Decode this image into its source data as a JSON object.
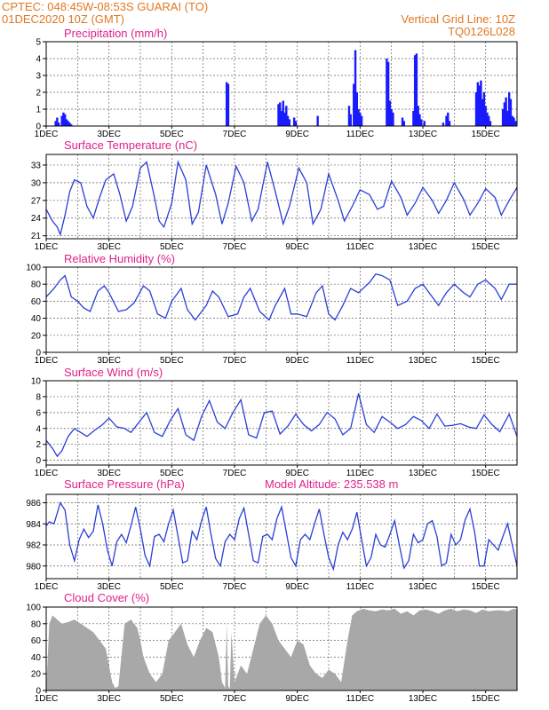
{
  "header": {
    "line1_left": "CPTEC:   048:45W-08:53S   GUARAI (TO)",
    "line2_left": "01DEC2020 10Z (GMT)",
    "line1_right": "Vertical Grid Line: 10Z",
    "line2_right": "TQ0126L028"
  },
  "chart_data": [
    {
      "id": "precip",
      "type": "bar",
      "title": "Precipitation (mm/h)",
      "ylim": [
        0,
        5
      ],
      "yticks": [
        "0",
        "1",
        "2",
        "3",
        "4",
        "5"
      ],
      "xticks": [
        "1DEC",
        "3DEC",
        "5DEC",
        "7DEC",
        "9DEC",
        "11DEC",
        "13DEC",
        "15DEC"
      ],
      "grid": true,
      "bars": [
        [
          0.3,
          0.3
        ],
        [
          0.35,
          0.5
        ],
        [
          0.4,
          0.2
        ],
        [
          0.5,
          0.6
        ],
        [
          0.55,
          0.8
        ],
        [
          0.6,
          0.7
        ],
        [
          0.65,
          0.4
        ],
        [
          0.7,
          0.3
        ],
        [
          0.75,
          0.2
        ],
        [
          0.8,
          0.1
        ],
        [
          5.75,
          2.6
        ],
        [
          5.8,
          2.5
        ],
        [
          7.4,
          1.3
        ],
        [
          7.45,
          1.4
        ],
        [
          7.5,
          0.9
        ],
        [
          7.55,
          1.5
        ],
        [
          7.6,
          0.8
        ],
        [
          7.65,
          1.2
        ],
        [
          7.7,
          0.6
        ],
        [
          7.75,
          0.4
        ],
        [
          7.9,
          0.5
        ],
        [
          7.95,
          0.3
        ],
        [
          8.65,
          0.6
        ],
        [
          9.65,
          1.2
        ],
        [
          9.7,
          0.7
        ],
        [
          9.8,
          2.5
        ],
        [
          9.85,
          4.5
        ],
        [
          9.9,
          2.0
        ],
        [
          9.95,
          1.0
        ],
        [
          10.0,
          0.8
        ],
        [
          10.05,
          0.6
        ],
        [
          10.85,
          4.0
        ],
        [
          10.9,
          3.8
        ],
        [
          10.95,
          1.5
        ],
        [
          11.0,
          1.0
        ],
        [
          11.05,
          0.8
        ],
        [
          11.35,
          0.5
        ],
        [
          11.4,
          0.3
        ],
        [
          11.7,
          0.9
        ],
        [
          11.75,
          4.2
        ],
        [
          11.8,
          4.3
        ],
        [
          11.85,
          1.2
        ],
        [
          11.9,
          0.7
        ],
        [
          11.95,
          0.4
        ],
        [
          12.05,
          0.3
        ],
        [
          12.65,
          0.2
        ],
        [
          12.75,
          0.6
        ],
        [
          12.8,
          0.8
        ],
        [
          12.85,
          0.3
        ],
        [
          13.7,
          2.0
        ],
        [
          13.75,
          2.6
        ],
        [
          13.8,
          2.4
        ],
        [
          13.85,
          2.7
        ],
        [
          13.9,
          1.6
        ],
        [
          13.95,
          2.0
        ],
        [
          14.0,
          1.2
        ],
        [
          14.05,
          0.8
        ],
        [
          14.1,
          0.6
        ],
        [
          14.15,
          0.3
        ],
        [
          14.55,
          1.0
        ],
        [
          14.6,
          1.4
        ],
        [
          14.65,
          1.7
        ],
        [
          14.7,
          0.9
        ],
        [
          14.75,
          2.0
        ],
        [
          14.8,
          1.6
        ],
        [
          14.85,
          0.6
        ],
        [
          14.9,
          0.5
        ],
        [
          14.95,
          0.3
        ]
      ]
    },
    {
      "id": "temp",
      "type": "line",
      "title": "Surface Temperature (nC)",
      "ylim": [
        20.5,
        34.8
      ],
      "yticks": [
        "21",
        "24",
        "27",
        "30",
        "33"
      ],
      "xticks": [
        "1DEC",
        "3DEC",
        "5DEC",
        "7DEC",
        "9DEC",
        "11DEC",
        "13DEC",
        "15DEC"
      ],
      "grid": true,
      "x": [
        0,
        0.2,
        0.35,
        0.45,
        0.6,
        0.75,
        0.9,
        1.1,
        1.3,
        1.5,
        1.7,
        1.9,
        2.15,
        2.35,
        2.55,
        2.75,
        3.0,
        3.2,
        3.45,
        3.6,
        3.75,
        4.0,
        4.2,
        4.45,
        4.65,
        4.85,
        5.1,
        5.4,
        5.6,
        5.8,
        6.05,
        6.3,
        6.55,
        6.75,
        7.05,
        7.3,
        7.55,
        7.75,
        8.05,
        8.3,
        8.5,
        8.75,
        9.0,
        9.3,
        9.5,
        9.75,
        10.0,
        10.3,
        10.55,
        10.75,
        11.0,
        11.3,
        11.5,
        11.75,
        12.0,
        12.3,
        12.5,
        12.75,
        13.0,
        13.3,
        13.5,
        13.75,
        14.0,
        14.3,
        14.5,
        14.75,
        15.0
      ],
      "y": [
        25.5,
        23.5,
        22.5,
        21.2,
        24.5,
        28.5,
        30.5,
        30.0,
        26.0,
        24.0,
        27.5,
        30.5,
        31.5,
        28.0,
        23.5,
        26.0,
        32.5,
        33.5,
        27.5,
        23.5,
        22.5,
        26.5,
        33.5,
        30.5,
        23.0,
        25.0,
        33.0,
        28.0,
        23.0,
        26.5,
        32.8,
        30.0,
        23.5,
        25.5,
        33.5,
        28.5,
        23.0,
        26.0,
        32.5,
        30.0,
        23.0,
        25.5,
        31.5,
        27.0,
        23.5,
        26.0,
        28.8,
        28.0,
        25.5,
        26.0,
        30.3,
        27.5,
        24.5,
        26.5,
        29.2,
        27.0,
        24.8,
        27.0,
        30.0,
        27.2,
        24.5,
        26.5,
        29.0,
        27.5,
        24.5,
        27.0,
        29.2
      ]
    },
    {
      "id": "rh",
      "type": "line",
      "title": "Relative Humidity (%)",
      "ylim": [
        0,
        100
      ],
      "yticks": [
        "0",
        "20",
        "40",
        "60",
        "80",
        "100"
      ],
      "xticks": [
        "1DEC",
        "3DEC",
        "5DEC",
        "7DEC",
        "9DEC",
        "11DEC",
        "13DEC",
        "15DEC"
      ],
      "grid": true,
      "x": [
        0,
        0.25,
        0.45,
        0.6,
        0.8,
        1.0,
        1.2,
        1.4,
        1.65,
        1.85,
        2.0,
        2.3,
        2.55,
        2.8,
        3.1,
        3.3,
        3.55,
        3.8,
        4.0,
        4.3,
        4.5,
        4.75,
        5.1,
        5.3,
        5.5,
        5.8,
        6.1,
        6.3,
        6.5,
        6.8,
        7.1,
        7.3,
        7.6,
        7.8,
        8.0,
        8.3,
        8.6,
        8.8,
        9.0,
        9.2,
        9.45,
        9.7,
        9.95,
        10.3,
        10.5,
        10.7,
        10.95,
        11.2,
        11.5,
        11.75,
        12.0,
        12.3,
        12.5,
        12.75,
        13.0,
        13.3,
        13.5,
        13.75,
        14.0,
        14.3,
        14.5,
        14.75,
        15.0
      ],
      "y": [
        65,
        75,
        85,
        90,
        65,
        60,
        52,
        48,
        72,
        78,
        70,
        48,
        50,
        58,
        78,
        72,
        45,
        40,
        60,
        75,
        50,
        38,
        55,
        72,
        65,
        42,
        45,
        65,
        75,
        48,
        38,
        55,
        75,
        45,
        45,
        42,
        70,
        78,
        45,
        38,
        55,
        75,
        70,
        82,
        92,
        90,
        85,
        55,
        60,
        75,
        80,
        65,
        55,
        70,
        80,
        70,
        65,
        80,
        85,
        75,
        62,
        80,
        80
      ]
    },
    {
      "id": "wind",
      "type": "line",
      "title": "Surface Wind (m/s)",
      "ylim": [
        -0.6,
        10
      ],
      "yticks": [
        "0",
        "2",
        "4",
        "6",
        "8",
        "10"
      ],
      "xticks": [
        "1DEC",
        "3DEC",
        "5DEC",
        "7DEC",
        "9DEC",
        "11DEC",
        "13DEC",
        "15DEC"
      ],
      "grid": true,
      "x": [
        0,
        0.2,
        0.35,
        0.5,
        0.7,
        0.9,
        1.1,
        1.3,
        1.55,
        1.8,
        2.0,
        2.25,
        2.5,
        2.7,
        3.0,
        3.2,
        3.45,
        3.7,
        3.95,
        4.2,
        4.45,
        4.7,
        4.95,
        5.2,
        5.45,
        5.7,
        5.95,
        6.2,
        6.45,
        6.7,
        6.95,
        7.2,
        7.45,
        7.7,
        7.95,
        8.2,
        8.45,
        8.7,
        8.95,
        9.2,
        9.45,
        9.7,
        9.95,
        10.2,
        10.45,
        10.7,
        10.95,
        11.2,
        11.45,
        11.7,
        11.95,
        12.2,
        12.45,
        12.7,
        12.95,
        13.2,
        13.45,
        13.7,
        13.95,
        14.2,
        14.45,
        14.75,
        15.0
      ],
      "y": [
        2.5,
        1.5,
        0.5,
        1.2,
        3.0,
        4.0,
        3.5,
        3.0,
        3.8,
        4.5,
        5.3,
        4.2,
        4.0,
        3.5,
        5.0,
        6.0,
        3.5,
        3.0,
        5.0,
        6.5,
        3.2,
        2.5,
        5.5,
        7.5,
        4.8,
        4.0,
        6.0,
        7.6,
        3.2,
        2.8,
        6.0,
        6.2,
        3.3,
        4.3,
        5.8,
        4.5,
        3.7,
        4.5,
        6.0,
        5.2,
        3.2,
        4.0,
        8.4,
        4.5,
        3.5,
        5.5,
        4.8,
        4.0,
        4.5,
        5.5,
        5.0,
        4.0,
        5.8,
        4.3,
        4.4,
        4.6,
        4.2,
        4.0,
        5.7,
        4.5,
        3.6,
        5.8,
        3.0
      ]
    },
    {
      "id": "pres",
      "type": "line",
      "title": "Surface Pressure (hPa)",
      "annotation": "Model Altitude: 235.538 m",
      "ylim": [
        978.8,
        986.8
      ],
      "yticks": [
        "980",
        "982",
        "984",
        "986"
      ],
      "xticks": [
        "1DEC",
        "3DEC",
        "5DEC",
        "7DEC",
        "9DEC",
        "11DEC",
        "13DEC",
        "15DEC"
      ],
      "grid": true,
      "x": [
        0,
        0.1,
        0.25,
        0.45,
        0.6,
        0.75,
        0.9,
        1.05,
        1.2,
        1.35,
        1.5,
        1.65,
        1.8,
        1.95,
        2.1,
        2.25,
        2.4,
        2.55,
        2.7,
        2.85,
        3.0,
        3.15,
        3.3,
        3.45,
        3.6,
        3.75,
        3.9,
        4.05,
        4.2,
        4.35,
        4.5,
        4.65,
        4.8,
        4.95,
        5.1,
        5.25,
        5.4,
        5.55,
        5.7,
        5.85,
        6.0,
        6.15,
        6.3,
        6.45,
        6.6,
        6.75,
        6.9,
        7.05,
        7.2,
        7.35,
        7.5,
        7.65,
        7.8,
        7.95,
        8.1,
        8.25,
        8.4,
        8.55,
        8.7,
        8.85,
        9.0,
        9.15,
        9.3,
        9.45,
        9.6,
        9.75,
        9.9,
        10.05,
        10.2,
        10.35,
        10.5,
        10.65,
        10.8,
        10.95,
        11.1,
        11.25,
        11.4,
        11.55,
        11.7,
        11.85,
        12.0,
        12.15,
        12.3,
        12.45,
        12.6,
        12.75,
        12.9,
        13.05,
        13.2,
        13.35,
        13.5,
        13.65,
        13.8,
        13.95,
        14.1,
        14.25,
        14.4,
        14.55,
        14.7,
        14.85,
        15.0
      ],
      "y": [
        983.8,
        984.2,
        984.0,
        986.0,
        985.3,
        982.0,
        980.5,
        982.5,
        983.5,
        982.7,
        983.3,
        985.8,
        984.0,
        981.5,
        980.0,
        982.3,
        983.0,
        982.2,
        983.8,
        985.6,
        983.5,
        981.0,
        980.0,
        982.8,
        983.0,
        982.3,
        984.0,
        985.3,
        982.8,
        980.3,
        980.5,
        983.3,
        982.5,
        984.3,
        985.6,
        983.0,
        980.7,
        980.0,
        982.3,
        983.0,
        982.5,
        984.5,
        985.5,
        983.0,
        980.5,
        980.3,
        982.8,
        983.0,
        982.5,
        984.5,
        985.6,
        983.2,
        980.8,
        980.0,
        982.5,
        983.0,
        982.5,
        984.0,
        985.4,
        983.0,
        980.8,
        979.7,
        982.0,
        983.2,
        982.5,
        983.5,
        985.1,
        982.5,
        980.0,
        980.8,
        983.0,
        982.0,
        981.8,
        983.0,
        984.3,
        982.0,
        979.8,
        980.5,
        983.0,
        982.2,
        982.5,
        984.0,
        984.3,
        982.8,
        980.0,
        980.3,
        983.0,
        982.0,
        982.5,
        984.4,
        985.4,
        983.2,
        980.0,
        980.0,
        982.5,
        982.0,
        981.5,
        982.8,
        984.0,
        982.0,
        980.0
      ]
    },
    {
      "id": "cloud",
      "type": "area",
      "title": "Cloud Cover (%)",
      "ylim": [
        0,
        100
      ],
      "yticks": [
        "0",
        "20",
        "40",
        "60",
        "80",
        "100"
      ],
      "xticks": [
        "1DEC",
        "3DEC",
        "5DEC",
        "7DEC",
        "9DEC",
        "11DEC",
        "13DEC",
        "15DEC"
      ],
      "grid": true,
      "color": "#a8a8a8",
      "x": [
        0,
        0.1,
        0.2,
        0.35,
        0.5,
        0.7,
        0.9,
        1.1,
        1.3,
        1.5,
        1.7,
        1.9,
        2.0,
        2.1,
        2.2,
        2.3,
        2.5,
        2.7,
        2.9,
        3.0,
        3.1,
        3.3,
        3.5,
        3.7,
        3.9,
        4.1,
        4.3,
        4.5,
        4.7,
        4.9,
        5.1,
        5.3,
        5.5,
        5.6,
        5.7,
        5.75,
        5.8,
        5.85,
        5.9,
        6.0,
        6.2,
        6.4,
        6.6,
        6.8,
        7.0,
        7.2,
        7.4,
        7.6,
        7.8,
        8.0,
        8.2,
        8.4,
        8.6,
        8.8,
        9.0,
        9.2,
        9.4,
        9.6,
        9.75,
        9.9,
        10.1,
        10.3,
        10.5,
        10.7,
        10.9,
        11.1,
        11.3,
        11.5,
        11.7,
        11.9,
        12.1,
        12.3,
        12.5,
        12.7,
        12.9,
        13.1,
        13.3,
        13.5,
        13.7,
        13.9,
        14.1,
        14.3,
        14.5,
        14.7,
        14.9,
        15.0
      ],
      "y": [
        0,
        80,
        90,
        85,
        80,
        82,
        85,
        80,
        75,
        70,
        60,
        50,
        30,
        10,
        3,
        5,
        80,
        85,
        75,
        60,
        40,
        20,
        10,
        20,
        60,
        70,
        80,
        55,
        40,
        60,
        75,
        70,
        40,
        10,
        3,
        80,
        5,
        2,
        70,
        10,
        30,
        20,
        50,
        80,
        90,
        80,
        60,
        50,
        40,
        60,
        55,
        30,
        20,
        15,
        25,
        20,
        10,
        60,
        90,
        95,
        98,
        96,
        95,
        97,
        96,
        98,
        92,
        95,
        90,
        96,
        97,
        95,
        92,
        96,
        98,
        95,
        97,
        96,
        93,
        97,
        95,
        96,
        96,
        95,
        98,
        97
      ]
    }
  ]
}
